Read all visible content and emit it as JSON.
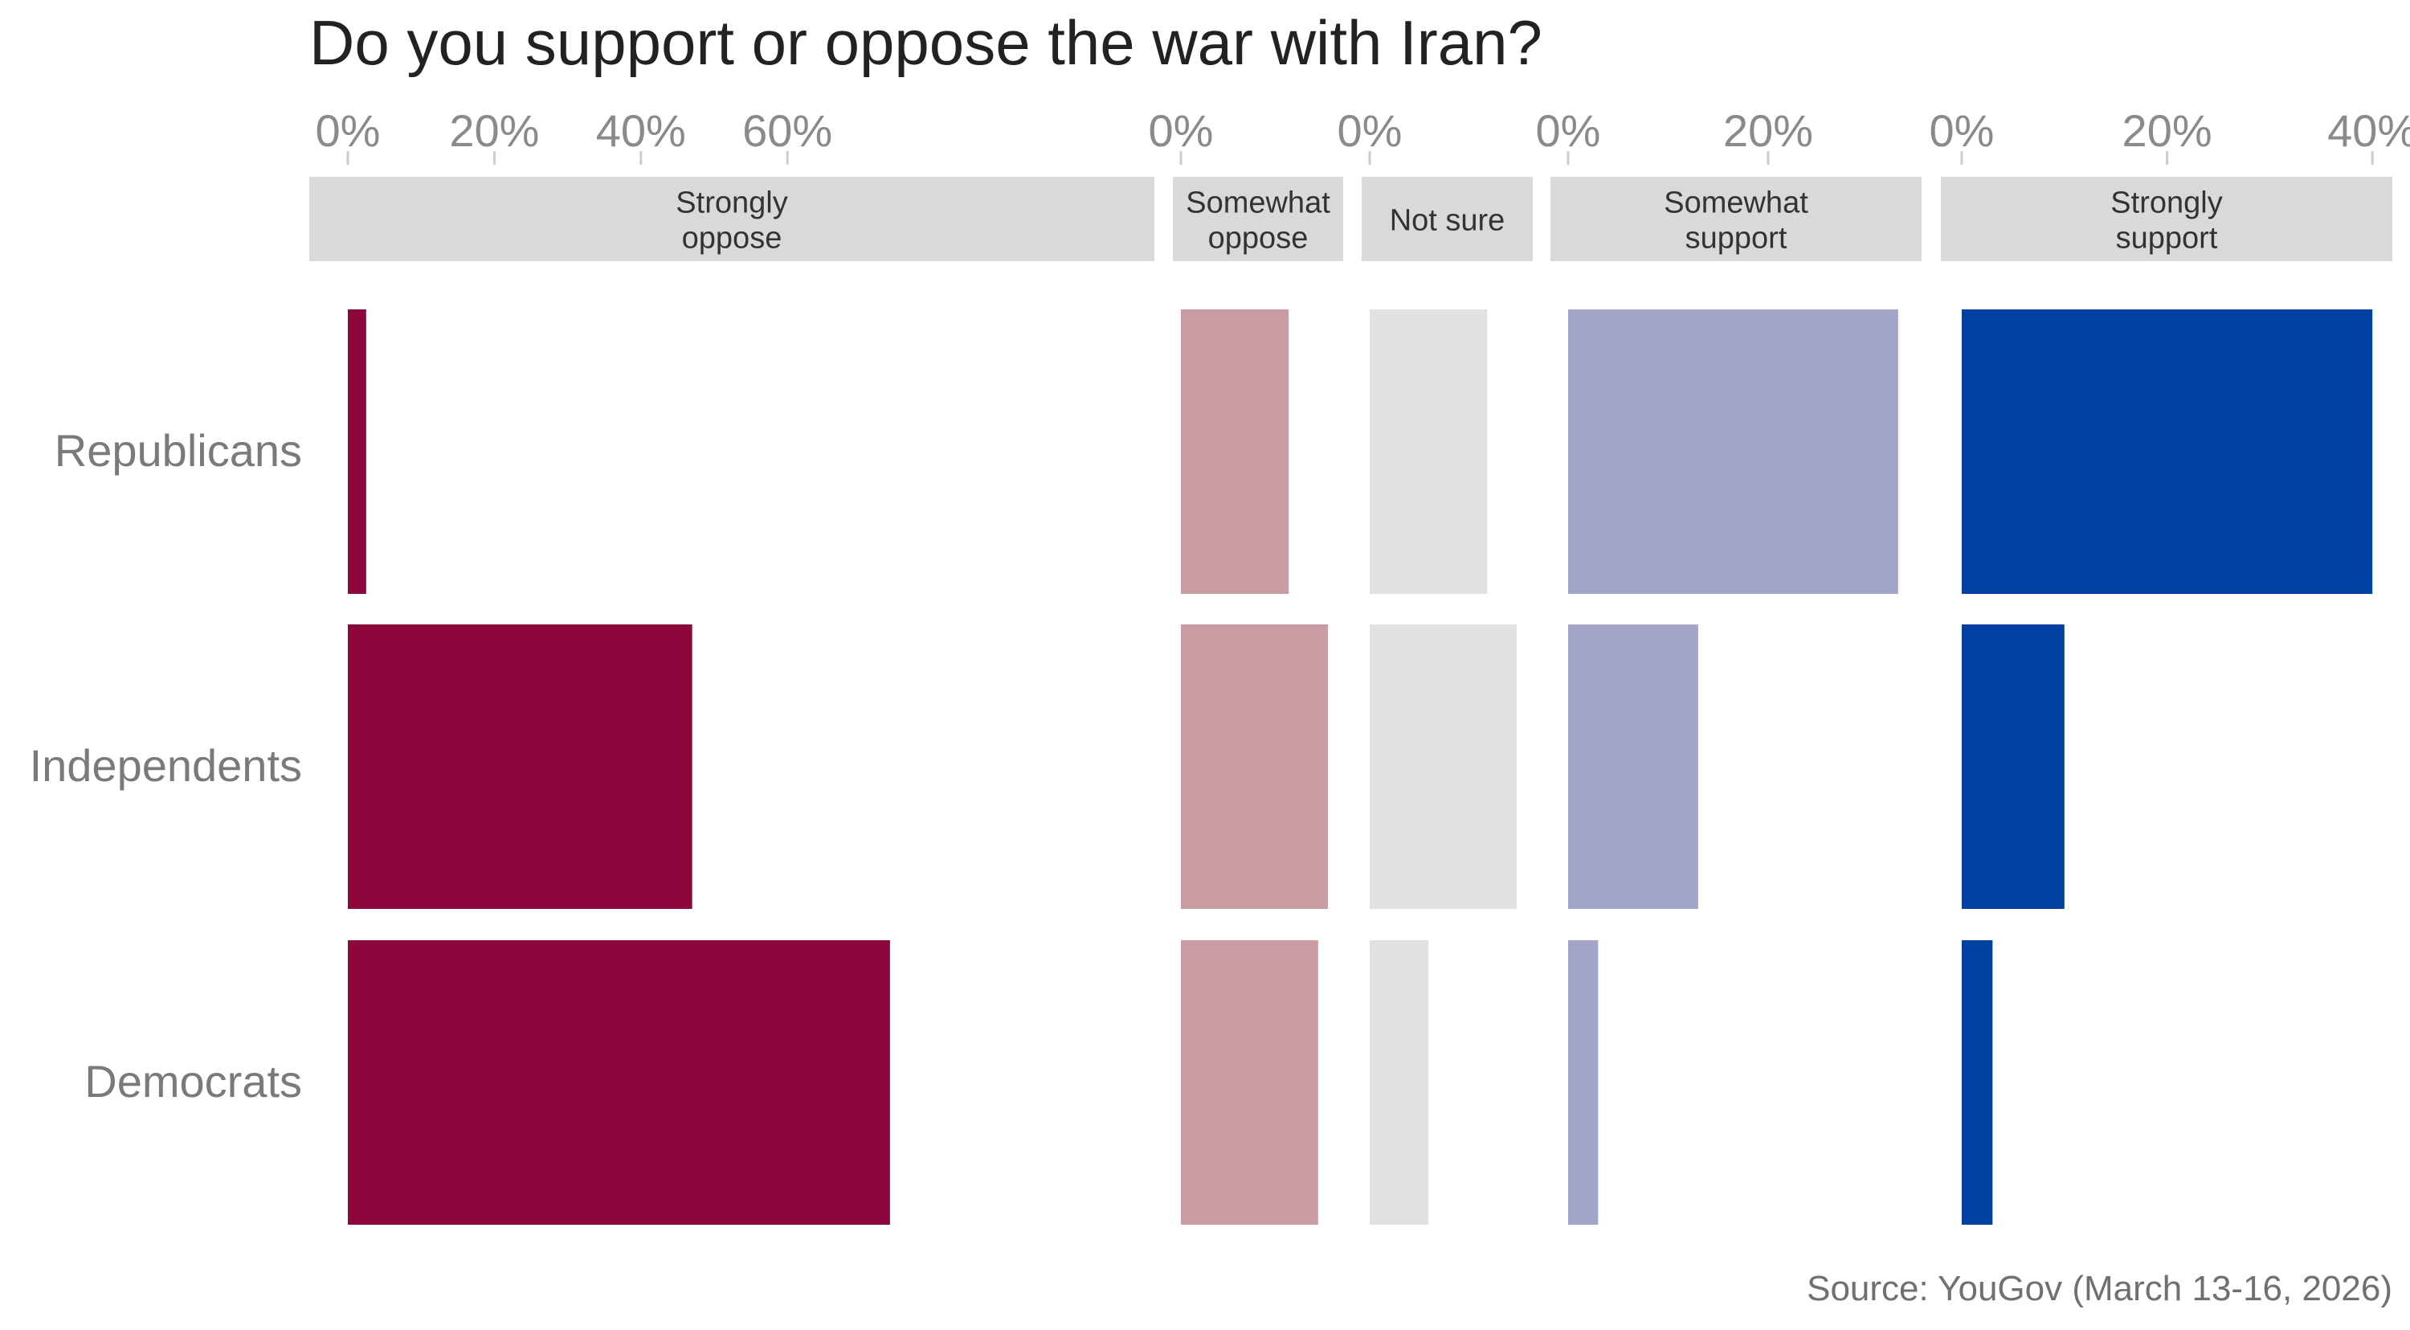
{
  "chart_data": {
    "type": "bar",
    "orientation": "horizontal",
    "layout": "faceted-columns",
    "title": "Do you support or oppose the war with Iran?",
    "source": "Source: YouGov (March 13-16, 2026)",
    "categories": [
      "Republicans",
      "Independents",
      "Democrats"
    ],
    "grid": false,
    "facets": [
      {
        "label_lines": [
          "Strongly",
          "oppose"
        ],
        "color": "#8c073b",
        "xlim": [
          0,
          75
        ],
        "ticks": [
          "0%",
          "20%",
          "40%",
          "60%"
        ],
        "tick_values": [
          0,
          20,
          40,
          60
        ],
        "values": [
          2.5,
          47,
          74
        ]
      },
      {
        "label_lines": [
          "Somewhat",
          "oppose"
        ],
        "color": "#c99ba2",
        "xlim": [
          0,
          16
        ],
        "ticks": [
          "0%"
        ],
        "tick_values": [
          0
        ],
        "values": [
          11,
          15,
          14
        ]
      },
      {
        "label_lines": [
          "Not sure"
        ],
        "color": "#e1e1e1",
        "xlim": [
          0,
          16
        ],
        "ticks": [
          "0%"
        ],
        "tick_values": [
          0
        ],
        "values": [
          12,
          15,
          6
        ]
      },
      {
        "label_lines": [
          "Somewhat",
          "support"
        ],
        "color": "#a3a6c8",
        "xlim": [
          0,
          34
        ],
        "ticks": [
          "0%",
          "20%"
        ],
        "tick_values": [
          0,
          20
        ],
        "values": [
          33,
          13,
          3
        ]
      },
      {
        "label_lines": [
          "Strongly",
          "support"
        ],
        "color": "#0040a0",
        "xlim": [
          0,
          42
        ],
        "ticks": [
          "0%",
          "20%",
          "40%"
        ],
        "tick_values": [
          0,
          20,
          40
        ],
        "values": [
          40,
          10,
          3
        ]
      }
    ]
  }
}
